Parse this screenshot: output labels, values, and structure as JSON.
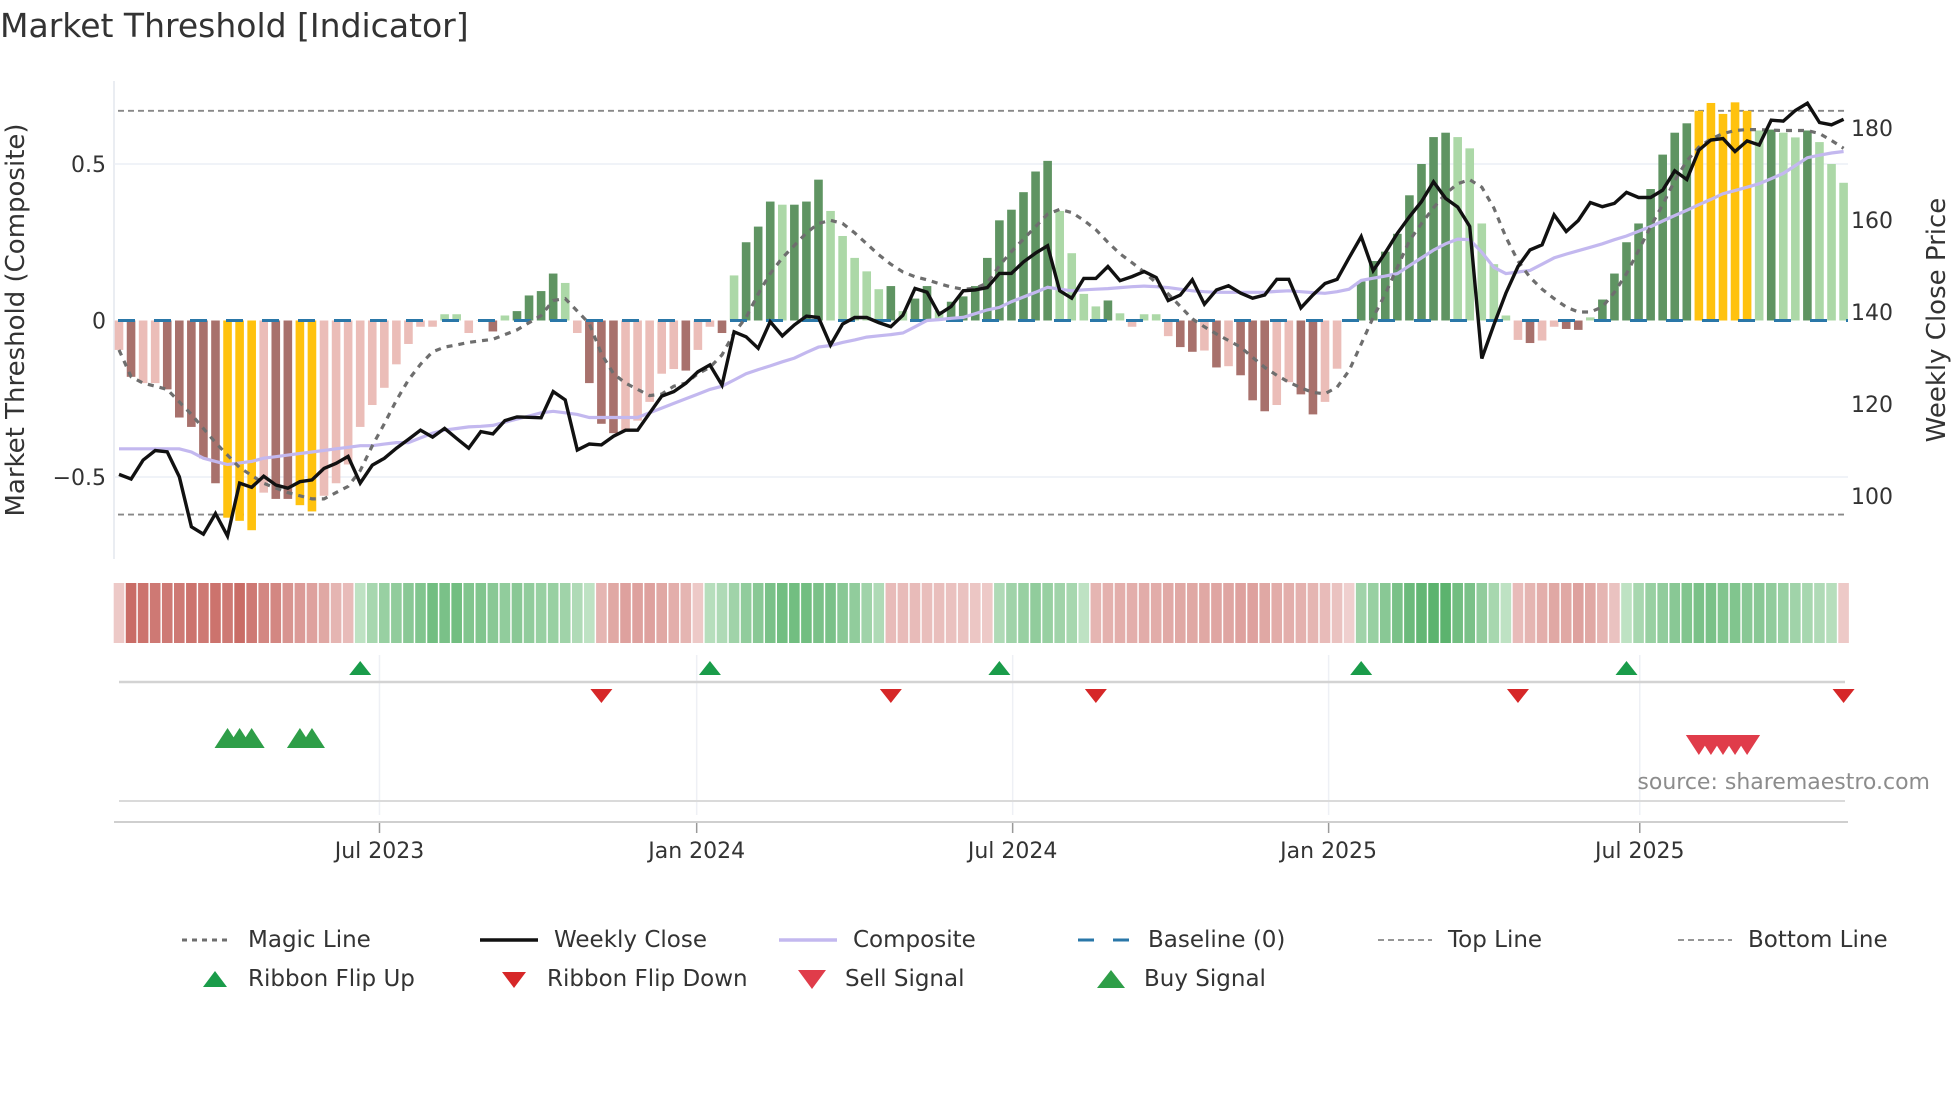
{
  "title": "Market Threshold [Indicator]",
  "source": "source: sharemaestro.com",
  "colors": {
    "bar_dark_green": "#5f9462",
    "bar_light_green": "#acd8a7",
    "bar_dark_red": "#a8716c",
    "bar_light_red": "#ebbdb8",
    "bar_signal": "#ffc20e",
    "weekly_close": "#111111",
    "composite": "#c3b8ef",
    "magic_line": "#6e6e6e",
    "baseline": "#2a77a8",
    "top_bottom": "#888888",
    "flip_up": "#1a9c4a",
    "flip_down": "#d62728",
    "sell": "#e03c4a",
    "buy": "#2e9e48"
  },
  "legend": [
    {
      "label": "Magic Line",
      "icon": "dotted-line"
    },
    {
      "label": "Weekly Close",
      "icon": "solid-black-line"
    },
    {
      "label": "Composite",
      "icon": "lavender-line"
    },
    {
      "label": "Baseline (0)",
      "icon": "blue-dashed-line"
    },
    {
      "label": "Top Line",
      "icon": "gray-dashed-line"
    },
    {
      "label": "Bottom Line",
      "icon": "gray-dashed-line"
    },
    {
      "label": "Ribbon Flip Up",
      "icon": "green-up-triangle"
    },
    {
      "label": "Ribbon Flip Down",
      "icon": "red-down-triangle"
    },
    {
      "label": "Sell Signal",
      "icon": "red-down-triangle"
    },
    {
      "label": "Buy Signal",
      "icon": "green-up-triangle"
    }
  ],
  "chart_data": {
    "type": "bar+line",
    "title": "Market Threshold [Indicator]",
    "ylabel": "Market Threshold (Composite)",
    "y2label": "Weekly Close Price",
    "xlabel": "",
    "x_unit": "week index (1 = first week shown)",
    "n_weeks": 144,
    "ylim": [
      -0.77,
      0.82
    ],
    "y2lim": [
      80,
      191
    ],
    "left_ticks": [
      {
        "value": 0.5,
        "label": "0.5"
      },
      {
        "value": 0,
        "label": "0"
      },
      {
        "value": -0.5,
        "label": "−0.5"
      }
    ],
    "right_ticks": [
      {
        "value": 180,
        "label": "180"
      },
      {
        "value": 160,
        "label": "160"
      },
      {
        "value": 140,
        "label": "140"
      },
      {
        "value": 120,
        "label": "120"
      },
      {
        "value": 100,
        "label": "100"
      }
    ],
    "x_ticks": [
      {
        "x": 22.6,
        "label": "Jul 2023"
      },
      {
        "x": 48.9,
        "label": "Jan 2024"
      },
      {
        "x": 75.1,
        "label": "Jul 2024"
      },
      {
        "x": 101.3,
        "label": "Jan 2025"
      },
      {
        "x": 127.1,
        "label": "Jul 2025"
      }
    ],
    "top_line": 0.67,
    "bottom_line": -0.62,
    "baseline": 0,
    "grid": true,
    "legend_position": "bottom",
    "bar_color_codes": "G=dark green (rising positive), g=light green, R=dark red (falling negative), r=light red, Y=signal",
    "bar_colors": "rRrrRRRRRYYYrRRYYrrrrrrrrrrggrrRgGGGGgrRRRrrrrrRrrRgGGGgGGGgggggGgGGgGGGGGGGGGggggGgrggrRRrRrRRRrrRRrrgGGGGGGGGgggggrRrrRRgGGGGGGGGYYYYYgGggGggg",
    "composite_histogram": [
      -0.094,
      -0.18,
      -0.2,
      -0.2,
      -0.22,
      -0.31,
      -0.34,
      -0.44,
      -0.52,
      -0.63,
      -0.64,
      -0.67,
      -0.55,
      -0.57,
      -0.57,
      -0.59,
      -0.61,
      -0.56,
      -0.52,
      -0.46,
      -0.34,
      -0.27,
      -0.215,
      -0.14,
      -0.075,
      -0.02,
      -0.02,
      0.02,
      0.02,
      -0.04,
      0,
      -0.035,
      0.016,
      0.03,
      0.08,
      0.094,
      0.15,
      0.12,
      -0.04,
      -0.2,
      -0.33,
      -0.36,
      -0.35,
      -0.32,
      -0.26,
      -0.17,
      -0.155,
      -0.16,
      -0.094,
      -0.02,
      -0.04,
      0.144,
      0.25,
      0.3,
      0.38,
      0.37,
      0.37,
      0.38,
      0.45,
      0.35,
      0.27,
      0.2,
      0.157,
      0.1,
      0.11,
      0.03,
      0.07,
      0.11,
      0.03,
      0.06,
      0.077,
      0.11,
      0.2,
      0.32,
      0.354,
      0.41,
      0.476,
      0.51,
      0.35,
      0.215,
      0.085,
      0.045,
      0.064,
      0.023,
      -0.02,
      0.02,
      0.02,
      -0.05,
      -0.085,
      -0.1,
      -0.096,
      -0.15,
      -0.146,
      -0.175,
      -0.255,
      -0.29,
      -0.27,
      -0.197,
      -0.236,
      -0.3,
      -0.26,
      -0.154,
      0,
      0.125,
      0.19,
      0.22,
      0.277,
      0.4,
      0.5,
      0.586,
      0.6,
      0.586,
      0.55,
      0.31,
      0.18,
      0.016,
      -0.062,
      -0.072,
      -0.064,
      -0.02,
      -0.027,
      -0.03,
      0.01,
      0.067,
      0.15,
      0.25,
      0.31,
      0.42,
      0.53,
      0.6,
      0.63,
      0.67,
      0.695,
      0.66,
      0.697,
      0.67,
      0.607,
      0.61,
      0.6,
      0.585,
      0.607,
      0.57,
      0.5,
      0.44
    ],
    "weekly_close": [
      104.7,
      103.7,
      107.8,
      109.9,
      109.6,
      104.2,
      93.3,
      91.7,
      96.2,
      91.3,
      102.8,
      101.9,
      104.3,
      102.4,
      101.7,
      103.1,
      103.5,
      106,
      107.1,
      108.6,
      102.8,
      106.7,
      108.2,
      110.4,
      112.3,
      114.3,
      112.8,
      114.7,
      112.5,
      110.4,
      114,
      113.5,
      116.4,
      117.2,
      117.1,
      117,
      122.7,
      120.9,
      110,
      111.3,
      111.1,
      113,
      114.3,
      114.3,
      118,
      121.7,
      122.7,
      124.5,
      127,
      128.5,
      124.1,
      135.7,
      134.6,
      132.1,
      137.9,
      134.8,
      137.2,
      139.1,
      138.8,
      132.8,
      137.4,
      138.8,
      138.8,
      137.7,
      136.8,
      139.3,
      145.1,
      144.3,
      139.5,
      141.2,
      144.6,
      144.8,
      145.3,
      148.4,
      148.4,
      150.9,
      152.8,
      154.4,
      144.6,
      143,
      147.3,
      147.3,
      149.9,
      146.8,
      147.7,
      148.8,
      147.5,
      142.5,
      143.7,
      147,
      141.7,
      144.8,
      145.7,
      144.1,
      143,
      143.7,
      147.1,
      147.1,
      140.9,
      143.7,
      146.2,
      147.1,
      151.8,
      156.4,
      149,
      152.9,
      157.1,
      160.7,
      164,
      168.3,
      164.7,
      162.8,
      158.6,
      129.9,
      137.2,
      144.1,
      149.9,
      153.5,
      154.6,
      161.1,
      157.5,
      159.9,
      163.8,
      162.9,
      163.6,
      166,
      164.9,
      164.9,
      166.5,
      170.7,
      168.8,
      175.2,
      177.4,
      177.7,
      174.9,
      177.2,
      176.3,
      181.7,
      181.5,
      183.8,
      185.4,
      181.2,
      180.7,
      181.9
    ],
    "composite": [
      -0.41,
      -0.41,
      -0.41,
      -0.41,
      -0.41,
      -0.41,
      -0.42,
      -0.44,
      -0.45,
      -0.46,
      -0.455,
      -0.45,
      -0.44,
      -0.435,
      -0.43,
      -0.425,
      -0.42,
      -0.415,
      -0.41,
      -0.405,
      -0.4,
      -0.4,
      -0.395,
      -0.39,
      -0.39,
      -0.375,
      -0.36,
      -0.35,
      -0.345,
      -0.34,
      -0.338,
      -0.335,
      -0.325,
      -0.315,
      -0.305,
      -0.295,
      -0.29,
      -0.295,
      -0.3,
      -0.31,
      -0.31,
      -0.31,
      -0.31,
      -0.31,
      -0.295,
      -0.28,
      -0.265,
      -0.25,
      -0.235,
      -0.22,
      -0.21,
      -0.19,
      -0.17,
      -0.157,
      -0.145,
      -0.132,
      -0.12,
      -0.102,
      -0.085,
      -0.08,
      -0.07,
      -0.062,
      -0.053,
      -0.049,
      -0.045,
      -0.04,
      -0.02,
      0.0,
      0.003,
      0.007,
      0.01,
      0.022,
      0.034,
      0.042,
      0.06,
      0.075,
      0.09,
      0.106,
      0.1,
      0.095,
      0.098,
      0.1,
      0.102,
      0.105,
      0.108,
      0.11,
      0.108,
      0.105,
      0.1,
      0.095,
      0.092,
      0.09,
      0.09,
      0.09,
      0.09,
      0.09,
      0.093,
      0.095,
      0.092,
      0.089,
      0.087,
      0.092,
      0.1,
      0.128,
      0.135,
      0.142,
      0.15,
      0.175,
      0.2,
      0.225,
      0.245,
      0.26,
      0.258,
      0.218,
      0.17,
      0.15,
      0.155,
      0.16,
      0.18,
      0.2,
      0.212,
      0.223,
      0.234,
      0.245,
      0.258,
      0.27,
      0.285,
      0.3,
      0.318,
      0.335,
      0.352,
      0.37,
      0.387,
      0.405,
      0.415,
      0.426,
      0.437,
      0.453,
      0.47,
      0.495,
      0.52,
      0.528,
      0.535,
      0.54
    ],
    "magic_line": [
      -0.094,
      -0.18,
      -0.2,
      -0.21,
      -0.22,
      -0.26,
      -0.3,
      -0.345,
      -0.39,
      -0.43,
      -0.47,
      -0.495,
      -0.52,
      -0.535,
      -0.55,
      -0.56,
      -0.57,
      -0.57,
      -0.55,
      -0.53,
      -0.48,
      -0.4,
      -0.33,
      -0.255,
      -0.19,
      -0.14,
      -0.1,
      -0.085,
      -0.078,
      -0.07,
      -0.065,
      -0.06,
      -0.045,
      -0.03,
      -0.007,
      0.016,
      0.064,
      0.07,
      0.03,
      -0.01,
      -0.106,
      -0.17,
      -0.2,
      -0.22,
      -0.24,
      -0.235,
      -0.21,
      -0.2,
      -0.17,
      -0.15,
      -0.11,
      -0.04,
      0.01,
      0.085,
      0.15,
      0.2,
      0.24,
      0.28,
      0.31,
      0.32,
      0.31,
      0.28,
      0.245,
      0.21,
      0.18,
      0.155,
      0.14,
      0.13,
      0.118,
      0.107,
      0.1,
      0.103,
      0.12,
      0.175,
      0.22,
      0.26,
      0.3,
      0.34,
      0.355,
      0.345,
      0.32,
      0.29,
      0.25,
      0.213,
      0.185,
      0.155,
      0.12,
      0.085,
      0.045,
      0.005,
      -0.02,
      -0.043,
      -0.064,
      -0.085,
      -0.118,
      -0.15,
      -0.175,
      -0.197,
      -0.215,
      -0.23,
      -0.234,
      -0.213,
      -0.16,
      -0.075,
      0.01,
      0.085,
      0.17,
      0.255,
      0.31,
      0.36,
      0.405,
      0.437,
      0.45,
      0.426,
      0.36,
      0.266,
      0.19,
      0.138,
      0.1,
      0.07,
      0.043,
      0.027,
      0.027,
      0.043,
      0.09,
      0.15,
      0.224,
      0.3,
      0.37,
      0.447,
      0.51,
      0.554,
      0.58,
      0.597,
      0.607,
      0.61,
      0.61,
      0.608,
      0.607,
      0.607,
      0.607,
      0.597,
      0.575,
      0.55
    ],
    "ribbon": [
      -0.2,
      -0.9,
      -0.85,
      -0.8,
      -0.8,
      -0.8,
      -0.85,
      -0.8,
      -0.85,
      -0.8,
      -0.9,
      -0.8,
      -0.7,
      -0.7,
      -0.6,
      -0.55,
      -0.5,
      -0.45,
      -0.35,
      -0.3,
      0.2,
      0.35,
      0.45,
      0.5,
      0.55,
      0.6,
      0.7,
      0.65,
      0.7,
      0.6,
      0.6,
      0.55,
      0.5,
      0.55,
      0.5,
      0.45,
      0.45,
      0.4,
      0.3,
      0.2,
      -0.35,
      -0.45,
      -0.5,
      -0.5,
      -0.5,
      -0.45,
      -0.4,
      -0.35,
      -0.2,
      0.25,
      0.3,
      0.4,
      0.5,
      0.55,
      0.65,
      0.7,
      0.7,
      0.7,
      0.65,
      0.65,
      0.55,
      0.5,
      0.4,
      0.3,
      -0.3,
      -0.3,
      -0.3,
      -0.28,
      -0.28,
      -0.26,
      -0.25,
      -0.22,
      -0.2,
      0.3,
      0.4,
      0.45,
      0.5,
      0.45,
      0.4,
      0.35,
      0.2,
      -0.35,
      -0.38,
      -0.4,
      -0.4,
      -0.42,
      -0.42,
      -0.44,
      -0.45,
      -0.45,
      -0.45,
      -0.47,
      -0.47,
      -0.5,
      -0.5,
      -0.45,
      -0.42,
      -0.4,
      -0.38,
      -0.35,
      -0.3,
      -0.25,
      -0.15,
      0.4,
      0.45,
      0.55,
      0.65,
      0.75,
      0.8,
      0.85,
      0.85,
      0.7,
      0.65,
      0.5,
      0.35,
      0.2,
      -0.3,
      -0.35,
      -0.4,
      -0.45,
      -0.45,
      -0.5,
      -0.45,
      -0.35,
      -0.25,
      0.2,
      0.35,
      0.45,
      0.5,
      0.55,
      0.6,
      0.65,
      0.65,
      0.6,
      0.6,
      0.55,
      0.55,
      0.5,
      0.45,
      0.4,
      0.35,
      0.3,
      0.25,
      -0.2
    ],
    "ribbon_flip_up": [
      21,
      50,
      74,
      104,
      126
    ],
    "ribbon_flip_down": [
      41,
      65,
      82,
      117,
      144
    ],
    "buy_signals": [
      10,
      11,
      12,
      16,
      17
    ],
    "sell_signals": [
      132,
      133,
      134,
      135,
      136
    ]
  }
}
